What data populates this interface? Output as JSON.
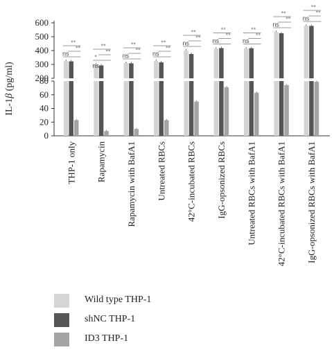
{
  "chart_data": {
    "type": "bar",
    "ylabel_prefix": "IL-1",
    "ylabel_symbol": "β",
    "ylabel_suffix": " (pg/ml)",
    "axis_break": true,
    "ylim_lower": [
      0,
      80
    ],
    "ylim_upper": [
      200,
      600
    ],
    "yticks_lower": [
      0,
      20,
      40,
      60,
      80
    ],
    "yticks_upper": [
      200,
      300,
      400,
      500,
      600
    ],
    "categories": [
      "THP-1 only",
      "Rapamycin",
      "Rapamycin with BafA1",
      "Untreated RBCs",
      "42°C-incubated RBCs",
      "IgG-opsonized RBCs",
      "Untreated RBCs with BafA1",
      "42°C-incubated RBCs with BafA1",
      "IgG-opsonized RBCs with BafA1"
    ],
    "series": [
      {
        "name": "Wild type THP-1",
        "color": "#d4d4d4",
        "values": [
          325,
          300,
          310,
          325,
          400,
          415,
          415,
          535,
          580
        ]
      },
      {
        "name": "shNC THP-1",
        "color": "#555555",
        "values": [
          322,
          293,
          308,
          315,
          375,
          418,
          417,
          525,
          578
        ]
      },
      {
        "name": "ID3 THP-1",
        "color": "#a4a4a4",
        "values": [
          23,
          7,
          10,
          23,
          50,
          71,
          63,
          74,
          79
        ]
      }
    ],
    "annotations": {
      "ns_label": "ns",
      "star_label": "**",
      "ns_levels": [
        1,
        2,
        1,
        1,
        1,
        1,
        1,
        1,
        1
      ]
    },
    "legend_position": "bottom-left"
  }
}
